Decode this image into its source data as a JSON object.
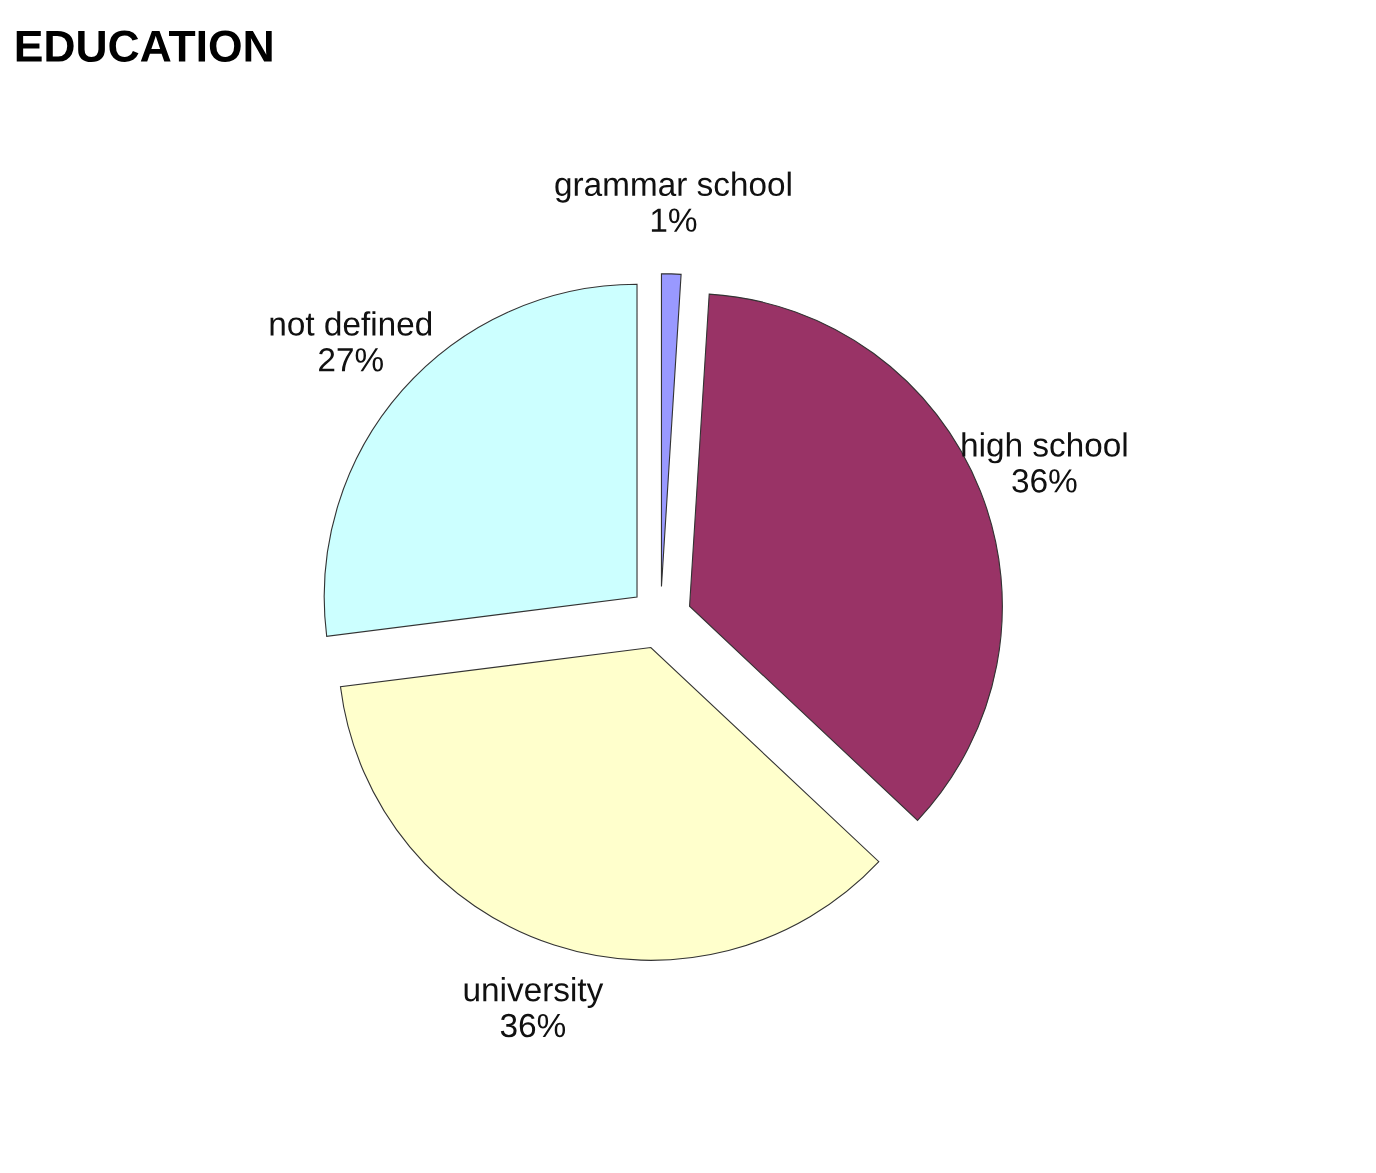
{
  "chart_data": {
    "type": "pie",
    "title": "EDUCATION",
    "categories": [
      "grammar school",
      "high school",
      "university",
      "not defined"
    ],
    "values": [
      1,
      36,
      36,
      27
    ],
    "value_labels": [
      "1%",
      "36%",
      "36%",
      "27%"
    ],
    "colors": [
      "#9999ff",
      "#993366",
      "#ffffcc",
      "#ccffff"
    ],
    "legend": false
  }
}
